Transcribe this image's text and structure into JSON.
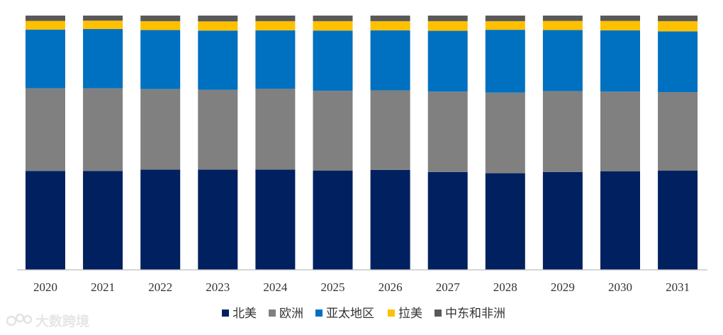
{
  "chart_data": {
    "type": "bar",
    "stacked": true,
    "normalized": true,
    "categories": [
      "2020",
      "2021",
      "2022",
      "2023",
      "2024",
      "2025",
      "2026",
      "2027",
      "2028",
      "2029",
      "2030",
      "2031"
    ],
    "series": [
      {
        "name": "北美",
        "color": "#002060",
        "values": [
          0.389,
          0.389,
          0.394,
          0.394,
          0.394,
          0.39,
          0.393,
          0.385,
          0.38,
          0.385,
          0.388,
          0.39
        ]
      },
      {
        "name": "欧洲",
        "color": "#808080",
        "values": [
          0.325,
          0.325,
          0.317,
          0.314,
          0.318,
          0.314,
          0.313,
          0.316,
          0.317,
          0.318,
          0.313,
          0.309
        ]
      },
      {
        "name": "亚太地区",
        "color": "#0070C0",
        "values": [
          0.231,
          0.233,
          0.232,
          0.233,
          0.23,
          0.237,
          0.236,
          0.239,
          0.247,
          0.24,
          0.241,
          0.239
        ]
      },
      {
        "name": "拉美",
        "color": "#FFC000",
        "values": [
          0.034,
          0.033,
          0.035,
          0.036,
          0.036,
          0.037,
          0.036,
          0.038,
          0.034,
          0.036,
          0.037,
          0.04
        ]
      },
      {
        "name": "中东和非洲",
        "color": "#595959",
        "values": [
          0.021,
          0.02,
          0.022,
          0.023,
          0.022,
          0.022,
          0.022,
          0.022,
          0.022,
          0.021,
          0.021,
          0.022
        ]
      }
    ],
    "legend_position": "bottom",
    "grid": false,
    "ylim": [
      0,
      1
    ]
  },
  "watermark": {
    "text": "大数跨境",
    "icon": "dashuju-logo-icon"
  }
}
